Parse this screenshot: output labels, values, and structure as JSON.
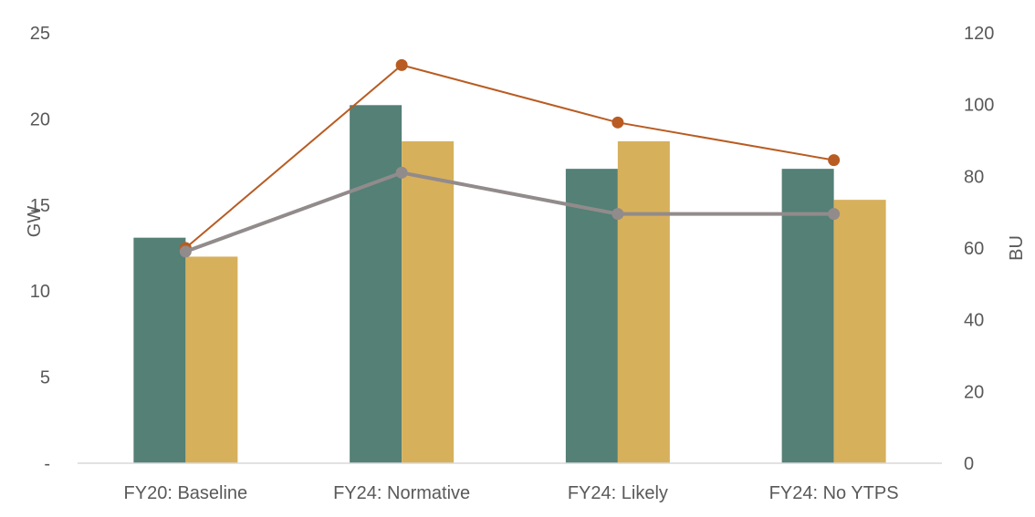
{
  "chart_data": {
    "type": "bar",
    "title": "",
    "categories": [
      "FY20: Baseline",
      "FY24: Normative",
      "FY24: Likely",
      "FY24: No YTPS"
    ],
    "ylabel": "GW",
    "y2label": "BU",
    "ylim": [
      0,
      25
    ],
    "y2lim": [
      0,
      120
    ],
    "yticks": [
      "-",
      "5",
      "10",
      "15",
      "20",
      "25"
    ],
    "y2ticks": [
      "0",
      "20",
      "40",
      "60",
      "80",
      "100",
      "120"
    ],
    "grid": false,
    "legend": "none",
    "series": [
      {
        "type": "bar",
        "axis": "left",
        "color": "#548076",
        "values": [
          13.1,
          20.8,
          17.1,
          17.1
        ]
      },
      {
        "type": "bar",
        "axis": "left",
        "color": "#D7B05C",
        "values": [
          12.0,
          18.7,
          18.7,
          15.3
        ]
      },
      {
        "type": "line",
        "axis": "right",
        "color": "#B85C23",
        "values": [
          60,
          111,
          95,
          84.5
        ]
      },
      {
        "type": "line",
        "axis": "right",
        "color": "#928B8B",
        "values": [
          59,
          81,
          69.5,
          69.5
        ]
      }
    ]
  }
}
